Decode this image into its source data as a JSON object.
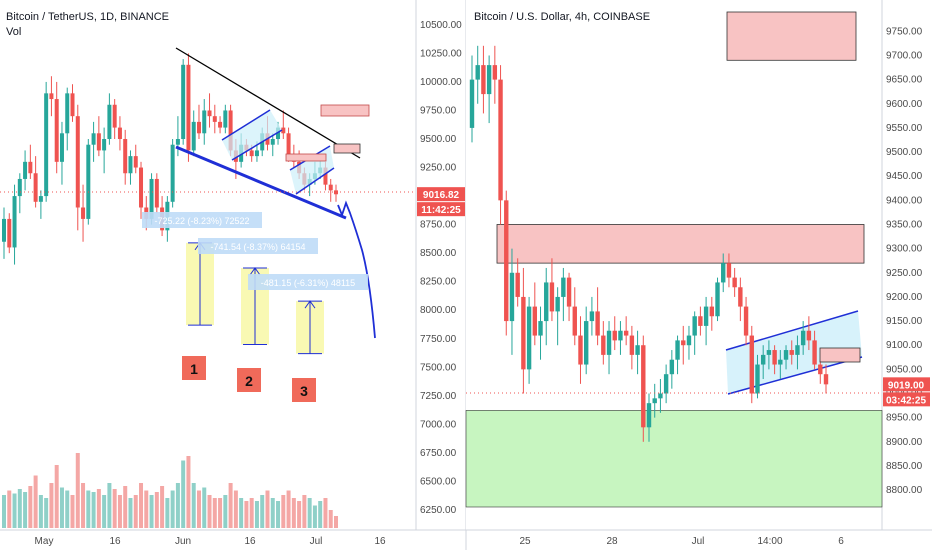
{
  "left_title": "Bitcoin / TetherUS, 1D, BINANCE",
  "left_subtitle": "Vol",
  "right_title": "Bitcoin / U.S. Dollar, 4h, COINBASE",
  "colors": {
    "up": "#26a69a",
    "down": "#ef5350",
    "up_vol": "#8fd0c8",
    "down_vol": "#f4a7a5",
    "price_tag": "#ef5350",
    "red_zone": "#f8c3c3",
    "green_zone": "#c7f5c0",
    "channel": "#cdeffa",
    "blue": "#1f2fd6"
  },
  "chart_data": [
    {
      "type": "candlestick",
      "title": "Bitcoin / TetherUS, 1D, BINANCE",
      "subtitle": "Vol",
      "x_ticks": [
        "May",
        "16",
        "Jun",
        "16",
        "Jul",
        "16"
      ],
      "y_ticks": [
        "10500.00",
        "10250.00",
        "10000.00",
        "9750.00",
        "9500.00",
        "9250.00",
        "9000.00",
        "8750.00",
        "8500.00",
        "8250.00",
        "8000.00",
        "7750.00",
        "7500.00",
        "7250.00",
        "7000.00",
        "6750.00",
        "6500.00",
        "6250.00"
      ],
      "ylim": [
        6180,
        10560
      ],
      "last_price": "9016.82",
      "countdown": "11:42:25",
      "ohlc": [
        [
          8600,
          8900,
          8450,
          8800
        ],
        [
          8800,
          8850,
          8500,
          8550
        ],
        [
          8550,
          9100,
          8400,
          9000
        ],
        [
          9000,
          9200,
          8850,
          9150
        ],
        [
          9150,
          9400,
          9050,
          9300
        ],
        [
          9300,
          9450,
          9150,
          9200
        ],
        [
          9200,
          9350,
          8900,
          8950
        ],
        [
          8950,
          9050,
          8800,
          9000
        ],
        [
          9000,
          10000,
          8950,
          9900
        ],
        [
          9900,
          10050,
          9700,
          9850
        ],
        [
          9850,
          10000,
          9200,
          9300
        ],
        [
          9300,
          9650,
          9100,
          9550
        ],
        [
          9550,
          9950,
          9400,
          9900
        ],
        [
          9900,
          9980,
          9650,
          9700
        ],
        [
          9700,
          9800,
          8700,
          8900
        ],
        [
          8900,
          9100,
          8600,
          8800
        ],
        [
          8800,
          9500,
          8750,
          9450
        ],
        [
          9450,
          9650,
          9300,
          9550
        ],
        [
          9550,
          9700,
          9350,
          9400
        ],
        [
          9400,
          9600,
          9200,
          9500
        ],
        [
          9500,
          9900,
          9450,
          9800
        ],
        [
          9800,
          9850,
          9500,
          9600
        ],
        [
          9600,
          9700,
          9400,
          9500
        ],
        [
          9500,
          9580,
          9100,
          9200
        ],
        [
          9200,
          9400,
          9100,
          9350
        ],
        [
          9350,
          9450,
          9200,
          9250
        ],
        [
          9250,
          9300,
          8800,
          8900
        ],
        [
          8900,
          9000,
          8700,
          8800
        ],
        [
          8800,
          9200,
          8750,
          9150
        ],
        [
          9150,
          9200,
          8850,
          8900
        ],
        [
          8900,
          9000,
          8650,
          8700
        ],
        [
          8700,
          9000,
          8600,
          8950
        ],
        [
          8950,
          9500,
          8900,
          9450
        ],
        [
          9450,
          9700,
          9350,
          9500
        ],
        [
          9500,
          10200,
          9450,
          10150
        ],
        [
          10150,
          10250,
          9300,
          9400
        ],
        [
          9400,
          9750,
          9350,
          9650
        ],
        [
          9650,
          9800,
          9500,
          9550
        ],
        [
          9550,
          9850,
          9450,
          9750
        ],
        [
          9750,
          9900,
          9600,
          9700
        ],
        [
          9700,
          9800,
          9550,
          9650
        ],
        [
          9650,
          9700,
          9550,
          9600
        ],
        [
          9600,
          9800,
          9550,
          9750
        ],
        [
          9750,
          9800,
          9350,
          9400
        ],
        [
          9400,
          9500,
          9150,
          9300
        ],
        [
          9300,
          9550,
          9250,
          9450
        ],
        [
          9450,
          9500,
          9350,
          9400
        ],
        [
          9400,
          9450,
          9300,
          9350
        ],
        [
          9350,
          9480,
          9300,
          9400
        ],
        [
          9400,
          9600,
          9350,
          9550
        ],
        [
          9550,
          9700,
          9400,
          9450
        ],
        [
          9450,
          9550,
          9350,
          9500
        ],
        [
          9500,
          9650,
          9450,
          9600
        ],
        [
          9600,
          9750,
          9500,
          9550
        ],
        [
          9550,
          9600,
          9300,
          9350
        ],
        [
          9350,
          9450,
          9250,
          9300
        ],
        [
          9300,
          9400,
          9150,
          9200
        ],
        [
          9200,
          9250,
          9050,
          9100
        ],
        [
          9100,
          9200,
          9000,
          9150
        ],
        [
          9150,
          9300,
          9100,
          9200
        ],
        [
          9200,
          9350,
          9150,
          9250
        ],
        [
          9250,
          9300,
          9050,
          9100
        ],
        [
          9100,
          9150,
          8950,
          9050
        ],
        [
          9050,
          9100,
          8950,
          9016
        ]
      ],
      "volume": [
        0.22,
        0.25,
        0.23,
        0.26,
        0.24,
        0.28,
        0.35,
        0.22,
        0.2,
        0.3,
        0.42,
        0.27,
        0.25,
        0.22,
        0.5,
        0.3,
        0.25,
        0.24,
        0.26,
        0.22,
        0.3,
        0.26,
        0.22,
        0.28,
        0.2,
        0.22,
        0.3,
        0.25,
        0.22,
        0.24,
        0.28,
        0.2,
        0.25,
        0.3,
        0.45,
        0.48,
        0.3,
        0.25,
        0.27,
        0.22,
        0.2,
        0.2,
        0.22,
        0.3,
        0.25,
        0.2,
        0.18,
        0.2,
        0.18,
        0.22,
        0.25,
        0.2,
        0.18,
        0.22,
        0.25,
        0.2,
        0.18,
        0.22,
        0.2,
        0.15,
        0.18,
        0.2,
        0.12,
        0.08
      ],
      "annotations": {
        "labels": [
          "-725.22 (-8.23%) 72522",
          "-741.54 (-8.37%) 64154",
          "-481.15 (-6.31%) 48115"
        ],
        "measures": [
          {
            "from": 7870,
            "to": 8590
          },
          {
            "from": 7700,
            "to": 8370
          },
          {
            "from": 7620,
            "to": 8080
          }
        ],
        "numbers": [
          "1",
          "2",
          "3"
        ]
      }
    },
    {
      "type": "candlestick",
      "title": "Bitcoin / U.S. Dollar, 4h, COINBASE",
      "x_ticks": [
        "25",
        "28",
        "Jul",
        "14:00",
        "6"
      ],
      "y_ticks": [
        "9750.00",
        "9700.00",
        "9650.00",
        "9600.00",
        "9550.00",
        "9500.00",
        "9450.00",
        "9400.00",
        "9350.00",
        "9300.00",
        "9250.00",
        "9200.00",
        "9150.00",
        "9100.00",
        "9050.00",
        "9000.00",
        "8950.00",
        "8900.00",
        "8850.00",
        "8800.00"
      ],
      "ylim": [
        8765,
        9790
      ],
      "last_price": "9019.00",
      "countdown": "03:42:25",
      "zones": {
        "red_top": [
          9690,
          9790
        ],
        "red_mid": [
          9270,
          9350
        ],
        "green_low": [
          8765,
          8965
        ]
      },
      "ohlc": [
        [
          9550,
          9700,
          9520,
          9650
        ],
        [
          9650,
          9720,
          9600,
          9680
        ],
        [
          9680,
          9720,
          9580,
          9620
        ],
        [
          9620,
          9700,
          9560,
          9680
        ],
        [
          9680,
          9720,
          9600,
          9650
        ],
        [
          9650,
          9680,
          9350,
          9400
        ],
        [
          9400,
          9420,
          9120,
          9150
        ],
        [
          9150,
          9300,
          9080,
          9250
        ],
        [
          9250,
          9280,
          9180,
          9200
        ],
        [
          9200,
          9260,
          9000,
          9050
        ],
        [
          9050,
          9200,
          9020,
          9180
        ],
        [
          9180,
          9230,
          9100,
          9120
        ],
        [
          9120,
          9180,
          9070,
          9150
        ],
        [
          9150,
          9260,
          9100,
          9230
        ],
        [
          9230,
          9280,
          9150,
          9170
        ],
        [
          9170,
          9220,
          9100,
          9200
        ],
        [
          9200,
          9260,
          9150,
          9240
        ],
        [
          9240,
          9250,
          9150,
          9180
        ],
        [
          9180,
          9220,
          9100,
          9120
        ],
        [
          9120,
          9160,
          9020,
          9060
        ],
        [
          9060,
          9180,
          9040,
          9150
        ],
        [
          9150,
          9200,
          9120,
          9170
        ],
        [
          9170,
          9220,
          9100,
          9120
        ],
        [
          9120,
          9150,
          9060,
          9080
        ],
        [
          9080,
          9150,
          9040,
          9130
        ],
        [
          9130,
          9160,
          9090,
          9110
        ],
        [
          9110,
          9150,
          9080,
          9130
        ],
        [
          9130,
          9160,
          9100,
          9120
        ],
        [
          9120,
          9140,
          9050,
          9080
        ],
        [
          9080,
          9130,
          9040,
          9100
        ],
        [
          9100,
          9120,
          8900,
          8930
        ],
        [
          8930,
          9000,
          8900,
          8980
        ],
        [
          8980,
          9020,
          8950,
          8990
        ],
        [
          8990,
          9030,
          8960,
          9000
        ],
        [
          9000,
          9060,
          8980,
          9040
        ],
        [
          9040,
          9090,
          9010,
          9070
        ],
        [
          9070,
          9120,
          9040,
          9110
        ],
        [
          9110,
          9140,
          9060,
          9100
        ],
        [
          9100,
          9140,
          9070,
          9120
        ],
        [
          9120,
          9170,
          9080,
          9160
        ],
        [
          9160,
          9180,
          9120,
          9140
        ],
        [
          9140,
          9200,
          9100,
          9180
        ],
        [
          9180,
          9200,
          9130,
          9160
        ],
        [
          9160,
          9240,
          9150,
          9230
        ],
        [
          9230,
          9290,
          9210,
          9270
        ],
        [
          9270,
          9290,
          9220,
          9240
        ],
        [
          9240,
          9260,
          9200,
          9220
        ],
        [
          9220,
          9240,
          9150,
          9180
        ],
        [
          9180,
          9200,
          9100,
          9120
        ],
        [
          9120,
          9140,
          8980,
          9000
        ],
        [
          9000,
          9080,
          8990,
          9060
        ],
        [
          9060,
          9100,
          9030,
          9080
        ],
        [
          9080,
          9110,
          9050,
          9090
        ],
        [
          9090,
          9100,
          9040,
          9060
        ],
        [
          9060,
          9090,
          9030,
          9070
        ],
        [
          9070,
          9100,
          9050,
          9090
        ],
        [
          9090,
          9110,
          9060,
          9080
        ],
        [
          9080,
          9120,
          9050,
          9100
        ],
        [
          9100,
          9150,
          9080,
          9130
        ],
        [
          9130,
          9160,
          9090,
          9110
        ],
        [
          9110,
          9130,
          9050,
          9060
        ],
        [
          9060,
          9070,
          9020,
          9040
        ],
        [
          9040,
          9060,
          9000,
          9019
        ]
      ]
    }
  ]
}
